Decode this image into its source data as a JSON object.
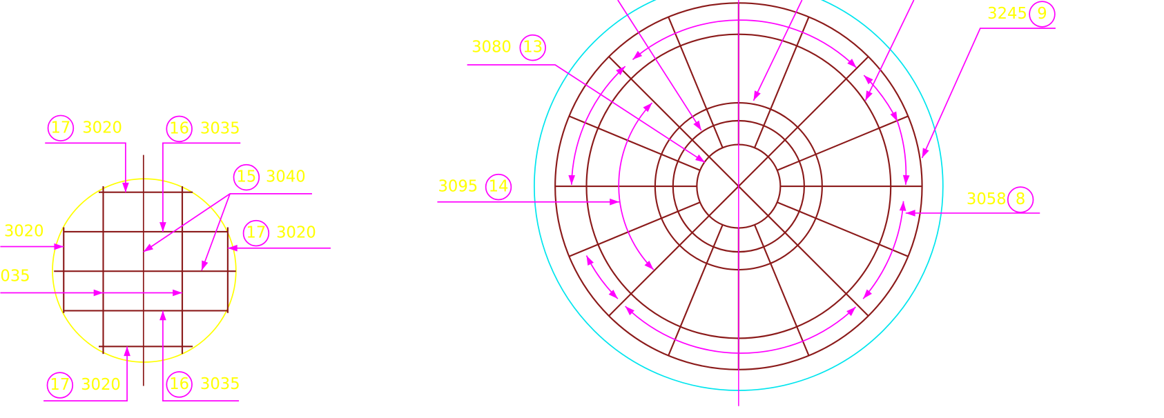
{
  "detail_labels": [
    {
      "mark": "17",
      "number": "3020"
    },
    {
      "mark": "16",
      "number": "3035"
    },
    {
      "mark": "15",
      "number": "3040"
    },
    {
      "mark": "17",
      "number": "3020"
    },
    {
      "number": "3020"
    },
    {
      "number": "035"
    },
    {
      "mark": "17",
      "number": "3020"
    },
    {
      "mark": "16",
      "number": "3035"
    }
  ],
  "plan_labels": [
    {
      "mark": "13",
      "number": "3080"
    },
    {
      "mark": "14",
      "number": "3095"
    },
    {
      "mark": "9",
      "number": "3245"
    },
    {
      "mark": "8",
      "number": "3058"
    }
  ]
}
